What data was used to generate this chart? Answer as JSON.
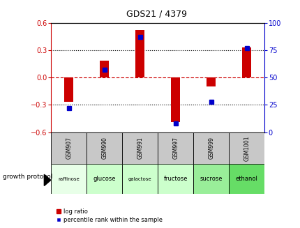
{
  "title": "GDS21 / 4379",
  "samples": [
    "GSM907",
    "GSM990",
    "GSM991",
    "GSM997",
    "GSM999",
    "GSM1001"
  ],
  "protocols": [
    "raffinose",
    "glucose",
    "galactose",
    "fructose",
    "sucrose",
    "ethanol"
  ],
  "log_ratios": [
    -0.265,
    0.185,
    0.52,
    -0.49,
    -0.1,
    0.33
  ],
  "percentile_ranks": [
    22,
    57,
    87,
    8,
    28,
    77
  ],
  "ylim_left": [
    -0.6,
    0.6
  ],
  "ylim_right": [
    0,
    100
  ],
  "yticks_left": [
    -0.6,
    -0.3,
    0.0,
    0.3,
    0.6
  ],
  "yticks_right": [
    0,
    25,
    50,
    75,
    100
  ],
  "bar_color": "#cc0000",
  "dot_color": "#0000cc",
  "protocol_bg_colors": [
    "#e8ffe8",
    "#ccffcc",
    "#ccffcc",
    "#ccffcc",
    "#99ee99",
    "#66dd66"
  ],
  "sample_bg_color": "#c8c8c8",
  "legend_log_ratio": "log ratio",
  "legend_percentile": "percentile rank within the sample",
  "growth_protocol_label": "growth protocol",
  "left_axis_color": "#cc0000",
  "right_axis_color": "#0000cc",
  "dotted_line_color": "#000000",
  "zero_line_color": "#cc0000"
}
